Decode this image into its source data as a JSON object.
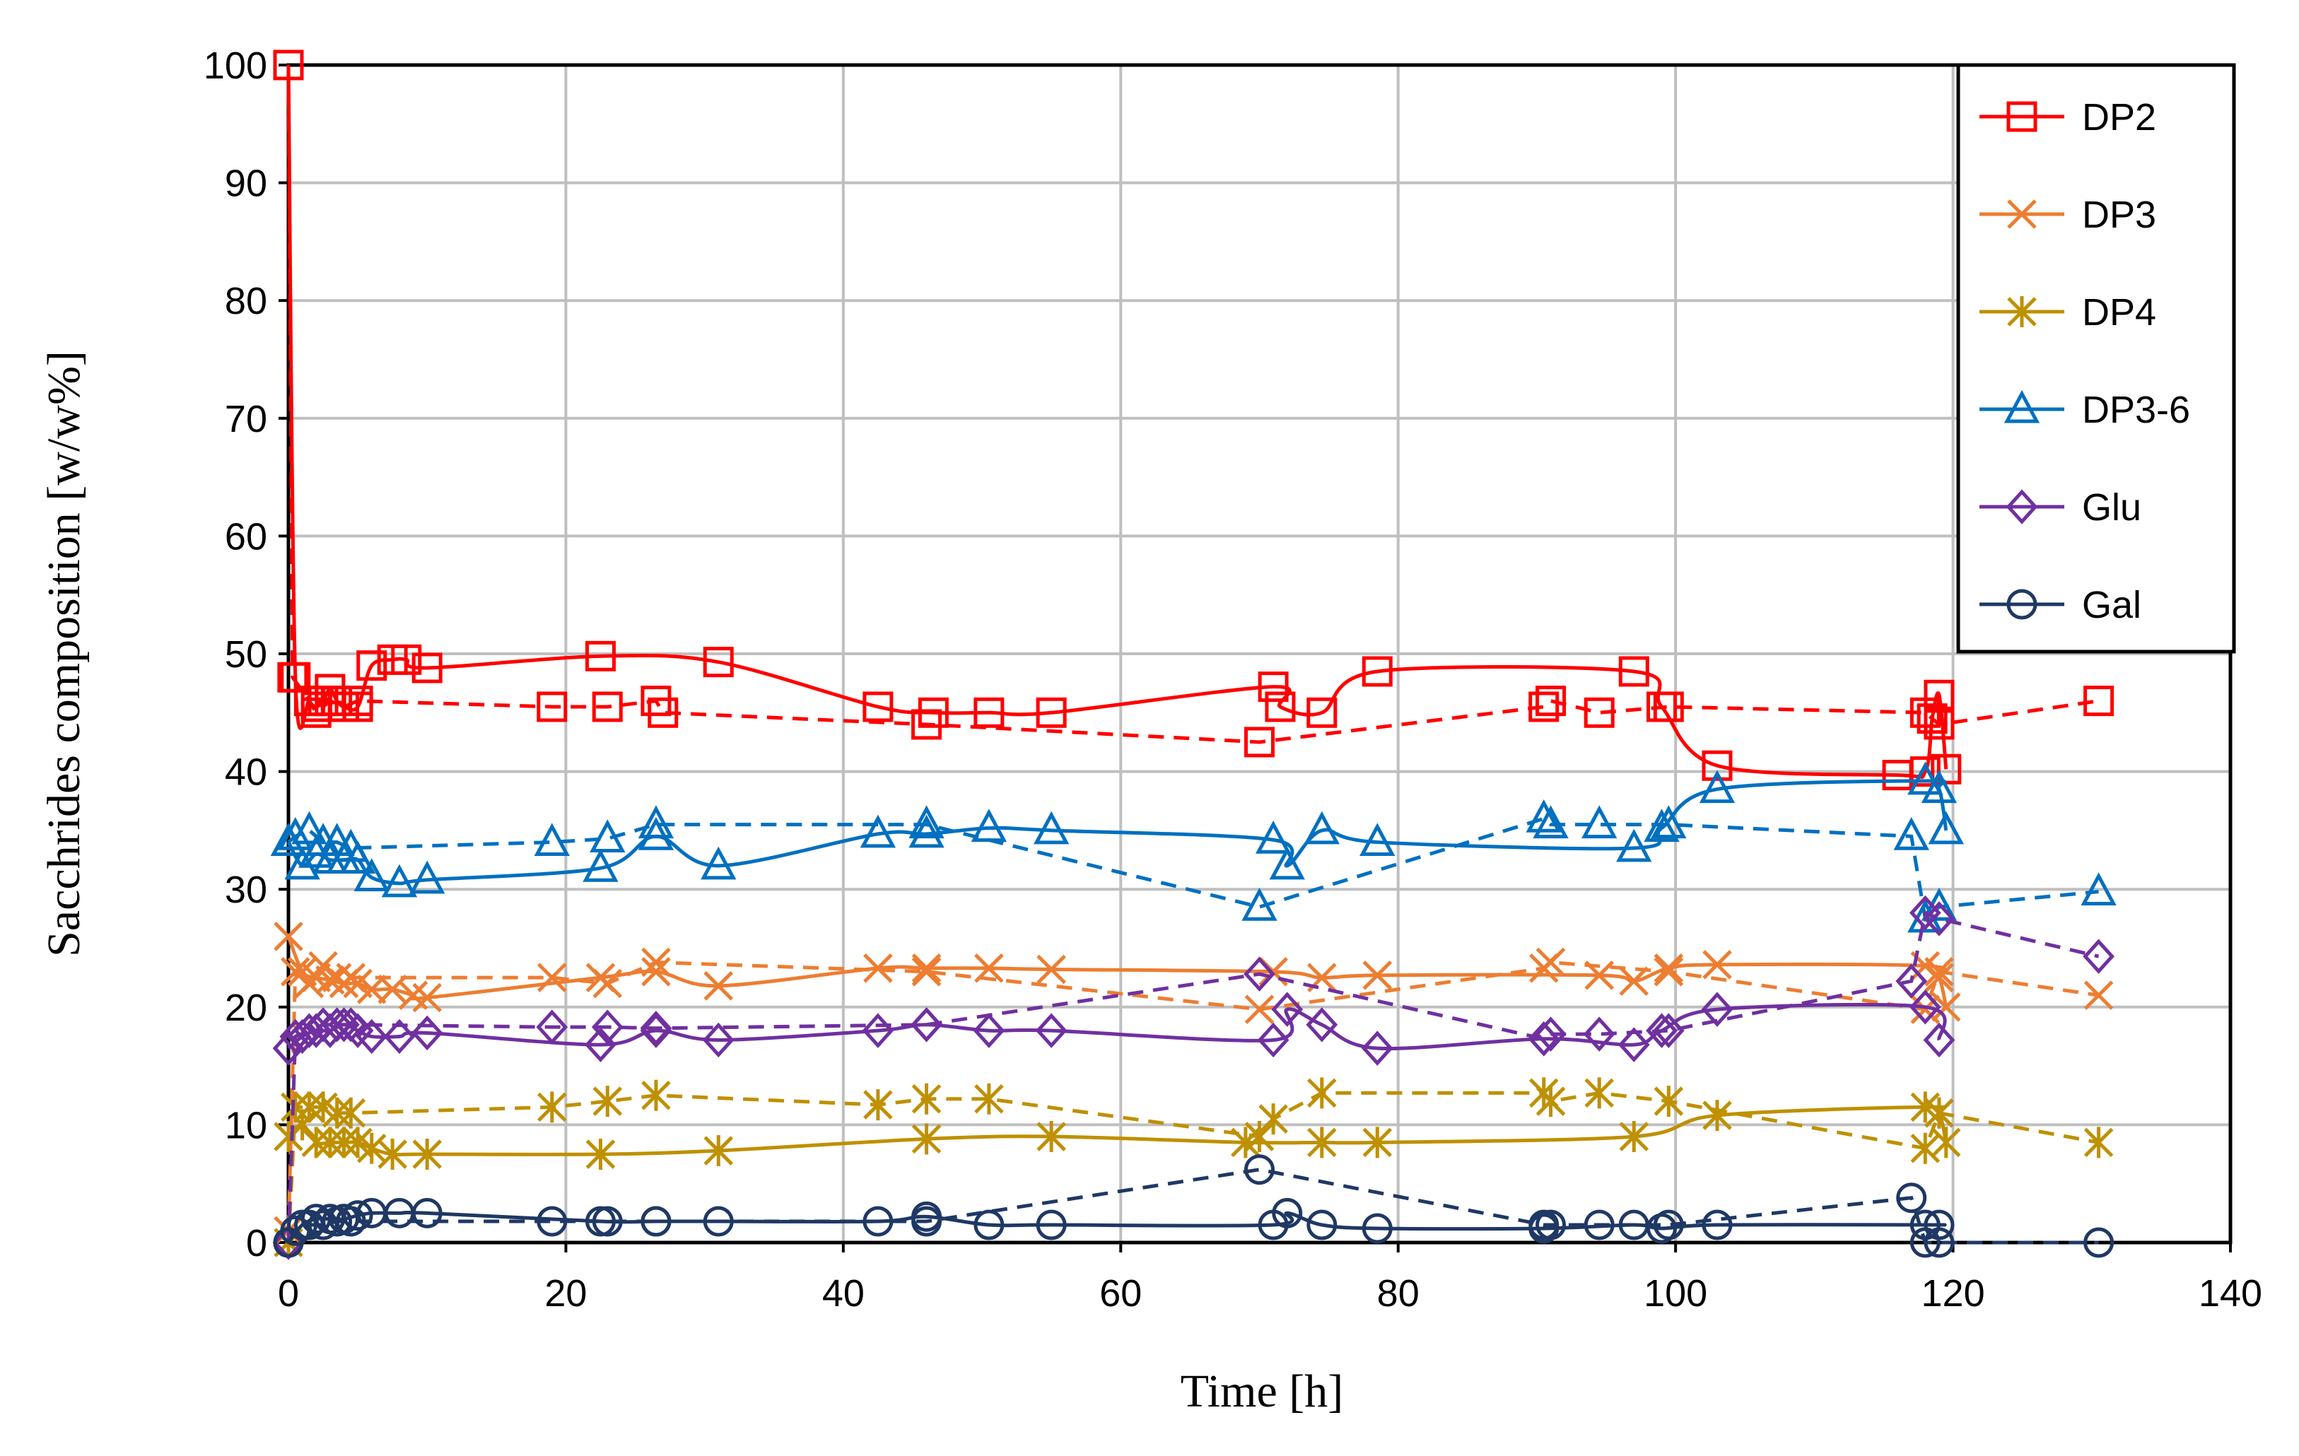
{
  "chart_data": {
    "type": "line",
    "title": "",
    "xlabel": "Time [h]",
    "ylabel": "Sacchrides composition [w/w%]",
    "xlim": [
      0,
      140
    ],
    "ylim": [
      0,
      100
    ],
    "xticks": [
      0,
      20,
      40,
      60,
      80,
      100,
      120,
      140
    ],
    "yticks": [
      0,
      10,
      20,
      30,
      40,
      50,
      60,
      70,
      80,
      90,
      100
    ],
    "grid": true,
    "legend_position": "top-right",
    "series": [
      {
        "name": "DP2",
        "color": "#ff0000",
        "marker": "square",
        "solid": [
          [
            0,
            100
          ],
          [
            0.5,
            48
          ],
          [
            1.5,
            46
          ],
          [
            2,
            45.5
          ],
          [
            2.5,
            46
          ],
          [
            3,
            47
          ],
          [
            3.5,
            46
          ],
          [
            4,
            45.5
          ],
          [
            5,
            45.5
          ],
          [
            6,
            49
          ],
          [
            7.5,
            49.5
          ],
          [
            8.5,
            49.5
          ],
          [
            10,
            48.8
          ],
          [
            22.5,
            49.8
          ],
          [
            31,
            49.3
          ],
          [
            42.5,
            45.5
          ],
          [
            46.5,
            45
          ],
          [
            50.5,
            45
          ],
          [
            55,
            45
          ],
          [
            71,
            47.2
          ],
          [
            71.5,
            45.5
          ],
          [
            74.5,
            45
          ],
          [
            78.5,
            48.5
          ],
          [
            97,
            48.5
          ],
          [
            99,
            45.5
          ],
          [
            103,
            40.5
          ],
          [
            116,
            39.7
          ],
          [
            118,
            40
          ],
          [
            118.5,
            44.5
          ],
          [
            119,
            46.5
          ],
          [
            119.5,
            40.2
          ]
        ],
        "dashed": [
          [
            0,
            100
          ],
          [
            0.3,
            48
          ],
          [
            1.5,
            46
          ],
          [
            2,
            45
          ],
          [
            3,
            46
          ],
          [
            4,
            45.5
          ],
          [
            5,
            46
          ],
          [
            19,
            45.5
          ],
          [
            23,
            45.5
          ],
          [
            26.5,
            46
          ],
          [
            27,
            45
          ],
          [
            46,
            44
          ],
          [
            70,
            42.5
          ],
          [
            90.5,
            45.5
          ],
          [
            91,
            46
          ],
          [
            94.5,
            45
          ],
          [
            99.5,
            45.5
          ],
          [
            118,
            45
          ],
          [
            119,
            44
          ],
          [
            130.5,
            46
          ]
        ]
      },
      {
        "name": "DP3",
        "color": "#ed7d31",
        "marker": "x",
        "solid": [
          [
            0,
            26
          ],
          [
            1,
            23
          ],
          [
            2,
            22.5
          ],
          [
            3,
            22.3
          ],
          [
            4,
            22
          ],
          [
            5,
            22
          ],
          [
            6,
            21.5
          ],
          [
            7.5,
            21.5
          ],
          [
            9,
            21
          ],
          [
            10,
            20.8
          ],
          [
            22.5,
            22.5
          ],
          [
            26.5,
            23
          ],
          [
            31,
            21.8
          ],
          [
            42.5,
            23.3
          ],
          [
            46,
            23.3
          ],
          [
            50.5,
            23.3
          ],
          [
            55,
            23.2
          ],
          [
            71,
            23
          ],
          [
            74.5,
            22.5
          ],
          [
            78.5,
            22.7
          ],
          [
            94.5,
            22.7
          ],
          [
            97,
            22.2
          ],
          [
            99.5,
            23.3
          ],
          [
            103,
            23.6
          ],
          [
            118,
            23.5
          ],
          [
            119,
            22.5
          ],
          [
            119.5,
            20
          ]
        ],
        "dashed": [
          [
            0,
            1
          ],
          [
            0.5,
            23
          ],
          [
            1.5,
            22
          ],
          [
            2.5,
            23.5
          ],
          [
            3.5,
            22.5
          ],
          [
            4.5,
            22.5
          ],
          [
            19,
            22.5
          ],
          [
            23,
            22
          ],
          [
            26.5,
            23.8
          ],
          [
            46,
            23
          ],
          [
            70,
            19.8
          ],
          [
            90.5,
            23.3
          ],
          [
            91,
            23.8
          ],
          [
            99.5,
            23
          ],
          [
            118,
            19.8
          ],
          [
            119,
            23
          ],
          [
            130.5,
            21
          ]
        ]
      },
      {
        "name": "DP4",
        "color": "#bf9000",
        "marker": "asterisk",
        "solid": [
          [
            0,
            9
          ],
          [
            1,
            10
          ],
          [
            2,
            8.5
          ],
          [
            3,
            8.5
          ],
          [
            4,
            8.5
          ],
          [
            5,
            8.5
          ],
          [
            6,
            8
          ],
          [
            7.5,
            7.5
          ],
          [
            10,
            7.5
          ],
          [
            22.5,
            7.5
          ],
          [
            31,
            7.8
          ],
          [
            46,
            8.8
          ],
          [
            55,
            9
          ],
          [
            69,
            8.5
          ],
          [
            74.5,
            8.5
          ],
          [
            78.5,
            8.5
          ],
          [
            97,
            9
          ],
          [
            103,
            10.8
          ],
          [
            118,
            11.5
          ],
          [
            119,
            11
          ],
          [
            119.5,
            8.5
          ]
        ],
        "dashed": [
          [
            0,
            0
          ],
          [
            0.5,
            11.5
          ],
          [
            1.5,
            11.5
          ],
          [
            2.5,
            11.5
          ],
          [
            3.5,
            11
          ],
          [
            4.5,
            11
          ],
          [
            19,
            11.5
          ],
          [
            23,
            12
          ],
          [
            26.5,
            12.5
          ],
          [
            42.5,
            11.7
          ],
          [
            46,
            12.2
          ],
          [
            50.5,
            12.2
          ],
          [
            70,
            9
          ],
          [
            71,
            10.5
          ],
          [
            74.5,
            12.7
          ],
          [
            90.5,
            12.7
          ],
          [
            91,
            12
          ],
          [
            94.5,
            12.7
          ],
          [
            99.5,
            12
          ],
          [
            118,
            8
          ],
          [
            119,
            11
          ],
          [
            130.5,
            8.5
          ]
        ]
      },
      {
        "name": "DP3-6",
        "color": "#0070c0",
        "marker": "triangle",
        "solid": [
          [
            0,
            34
          ],
          [
            1,
            32
          ],
          [
            2,
            33
          ],
          [
            3,
            32.5
          ],
          [
            4,
            32.5
          ],
          [
            5,
            32.5
          ],
          [
            6,
            31
          ],
          [
            8,
            30.5
          ],
          [
            10,
            30.8
          ],
          [
            22.5,
            31.8
          ],
          [
            26.5,
            34.5
          ],
          [
            31,
            32
          ],
          [
            42.5,
            34.7
          ],
          [
            46,
            34.7
          ],
          [
            50.5,
            35.2
          ],
          [
            55,
            35
          ],
          [
            71,
            34.2
          ],
          [
            72,
            32
          ],
          [
            74.5,
            35
          ],
          [
            78.5,
            34
          ],
          [
            97,
            33.5
          ],
          [
            99,
            35.2
          ],
          [
            103,
            38.5
          ],
          [
            118,
            39.2
          ],
          [
            119,
            38.5
          ],
          [
            119.5,
            35
          ]
        ],
        "dashed": [
          [
            0,
            34
          ],
          [
            0.5,
            34.5
          ],
          [
            1.5,
            35
          ],
          [
            2.5,
            34
          ],
          [
            3.5,
            34
          ],
          [
            4.5,
            33.5
          ],
          [
            19,
            34
          ],
          [
            23,
            34.3
          ],
          [
            26.5,
            35.5
          ],
          [
            46,
            35.5
          ],
          [
            70,
            28.5
          ],
          [
            90.5,
            36
          ],
          [
            91,
            35.5
          ],
          [
            94.5,
            35.5
          ],
          [
            99.5,
            35.5
          ],
          [
            117,
            34.5
          ],
          [
            118,
            27.5
          ],
          [
            119,
            28.5
          ],
          [
            130.5,
            29.8
          ]
        ]
      },
      {
        "name": "Glu",
        "color": "#7030a0",
        "marker": "diamond",
        "solid": [
          [
            0,
            16.5
          ],
          [
            1,
            17.5
          ],
          [
            2,
            18
          ],
          [
            3,
            18
          ],
          [
            4,
            18.5
          ],
          [
            5,
            18
          ],
          [
            6,
            17.5
          ],
          [
            8,
            17.5
          ],
          [
            10,
            17.8
          ],
          [
            22.5,
            16.8
          ],
          [
            26.5,
            18
          ],
          [
            31,
            17.2
          ],
          [
            42.5,
            18
          ],
          [
            46,
            18.5
          ],
          [
            50.5,
            18
          ],
          [
            55,
            18
          ],
          [
            71,
            17.2
          ],
          [
            72,
            19.8
          ],
          [
            74.5,
            18.5
          ],
          [
            78.5,
            16.5
          ],
          [
            90.5,
            17.3
          ],
          [
            97,
            16.8
          ],
          [
            99,
            18
          ],
          [
            103,
            19.8
          ],
          [
            118,
            20
          ],
          [
            119,
            17.2
          ]
        ],
        "dashed": [
          [
            0,
            0
          ],
          [
            0.5,
            17.5
          ],
          [
            1.5,
            18
          ],
          [
            2.5,
            18.5
          ],
          [
            3.5,
            18.5
          ],
          [
            4.5,
            18.5
          ],
          [
            19,
            18.3
          ],
          [
            23,
            18.3
          ],
          [
            26.5,
            18.2
          ],
          [
            46,
            18.5
          ],
          [
            70,
            22.8
          ],
          [
            90.5,
            17.3
          ],
          [
            91,
            17.7
          ],
          [
            94.5,
            17.7
          ],
          [
            99.5,
            18
          ],
          [
            117,
            22.2
          ],
          [
            118,
            28
          ],
          [
            119,
            27.5
          ],
          [
            130.5,
            24.3
          ]
        ]
      },
      {
        "name": "Gal",
        "color": "#1f3864",
        "marker": "circle",
        "solid": [
          [
            0,
            0
          ],
          [
            1,
            1.5
          ],
          [
            2,
            2
          ],
          [
            3,
            2
          ],
          [
            4,
            2
          ],
          [
            5,
            2.3
          ],
          [
            6,
            2.5
          ],
          [
            8,
            2.5
          ],
          [
            10,
            2.5
          ],
          [
            22.5,
            1.8
          ],
          [
            26.5,
            1.8
          ],
          [
            31,
            1.8
          ],
          [
            42.5,
            1.8
          ],
          [
            46,
            2.2
          ],
          [
            50.5,
            1.5
          ],
          [
            55,
            1.5
          ],
          [
            71,
            1.5
          ],
          [
            72,
            2.5
          ],
          [
            74.5,
            1.5
          ],
          [
            78.5,
            1.2
          ],
          [
            90.5,
            1.2
          ],
          [
            97,
            1.5
          ],
          [
            99,
            1.2
          ],
          [
            103,
            1.5
          ],
          [
            118,
            1.5
          ],
          [
            119,
            1.5
          ]
        ],
        "dashed": [
          [
            0,
            0
          ],
          [
            0.5,
            1
          ],
          [
            1.5,
            1.5
          ],
          [
            2.5,
            1.5
          ],
          [
            3.5,
            1.8
          ],
          [
            4.5,
            1.8
          ],
          [
            19,
            1.8
          ],
          [
            23,
            1.8
          ],
          [
            26.5,
            1.8
          ],
          [
            46,
            1.8
          ],
          [
            70,
            6.2
          ],
          [
            90.5,
            1.5
          ],
          [
            91,
            1.5
          ],
          [
            94.5,
            1.5
          ],
          [
            99.5,
            1.5
          ],
          [
            117,
            3.8
          ],
          [
            118,
            0
          ],
          [
            119,
            0
          ],
          [
            130.5,
            0
          ]
        ]
      }
    ]
  }
}
